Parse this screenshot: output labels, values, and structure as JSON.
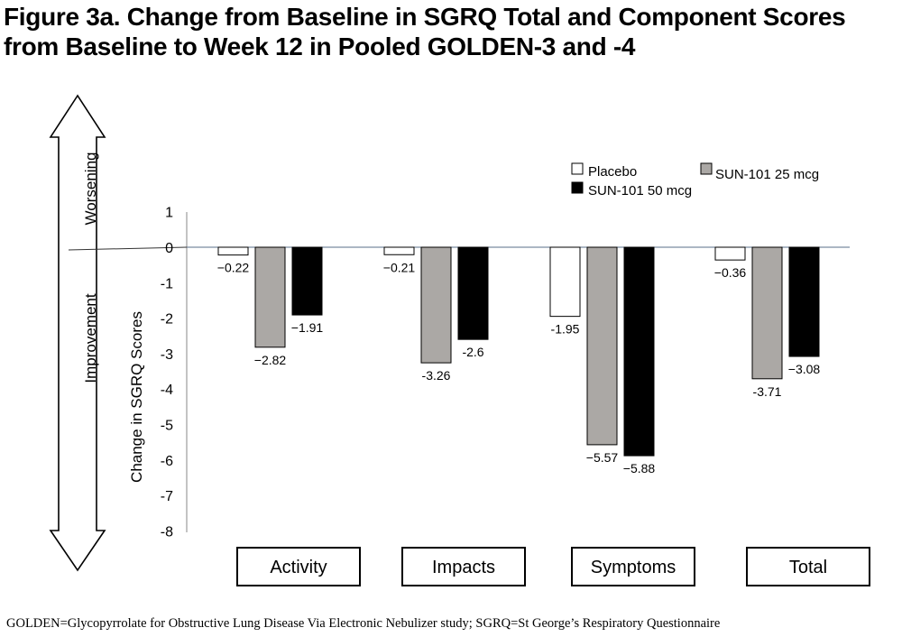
{
  "title": {
    "line1": "Figure 3a. Change from Baseline in SGRQ Total and Component Scores",
    "line2": "from Baseline to Week 12 in Pooled GOLDEN-3 and -4"
  },
  "arrow": {
    "up_label": "Worsening",
    "down_label": "Improvement"
  },
  "footnote": "GOLDEN=Glycopyrrolate for Obstructive Lung Disease Via Electronic Nebulizer study; SGRQ=St George’s Respiratory Questionnaire",
  "chart_data": {
    "type": "bar",
    "ylabel": "Change in SGRQ Scores",
    "ylim": [
      -8,
      1
    ],
    "yticks": [
      "1",
      "0",
      "-1",
      "-2",
      "-3",
      "-4",
      "-5",
      "-6",
      "-7",
      "-8"
    ],
    "categories": [
      "Activity",
      "Impacts",
      "Symptoms",
      "Total"
    ],
    "series": [
      {
        "name": "Placebo",
        "color": "#ffffff",
        "values": [
          -0.22,
          -0.21,
          -1.95,
          -0.36
        ],
        "labels": [
          "−0.22",
          "−0.21",
          "-1.95",
          "−0.36"
        ]
      },
      {
        "name": "SUN-101 25 mcg",
        "color": "#aba8a5",
        "values": [
          -2.82,
          -3.26,
          -5.57,
          -3.71
        ],
        "labels": [
          "−2.82",
          "-3.26",
          "−5.57",
          "-3.71"
        ]
      },
      {
        "name": "SUN-101 50 mcg",
        "color": "#000000",
        "values": [
          -1.91,
          -2.6,
          -5.88,
          -3.08
        ],
        "labels": [
          "−1.91",
          "-2.6",
          "−5.88",
          "−3.08"
        ]
      }
    ],
    "legend_position": "top-right",
    "grid": false
  }
}
